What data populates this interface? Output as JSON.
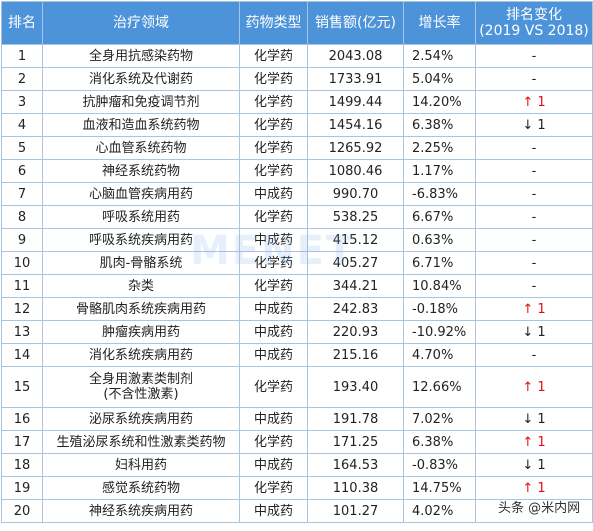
{
  "headers": {
    "rank": "排名",
    "area": "治疗领域",
    "type": "药物类型",
    "sales": "销售额(亿元)",
    "growth": "增长率",
    "change_line1": "排名变化",
    "change_line2": "(2019 VS 2018)"
  },
  "rows": [
    {
      "rank": "1",
      "area": "全身用抗感染药物",
      "type": "化学药",
      "sales": "2043.08",
      "growth": "2.54%",
      "change": "-"
    },
    {
      "rank": "2",
      "area": "消化系统及代谢药",
      "type": "化学药",
      "sales": "1733.91",
      "growth": "5.04%",
      "change": "-"
    },
    {
      "rank": "3",
      "area": "抗肿瘤和免疫调节剂",
      "type": "化学药",
      "sales": "1499.44",
      "growth": "14.20%",
      "change": "↑ 1"
    },
    {
      "rank": "4",
      "area": "血液和造血系统药物",
      "type": "化学药",
      "sales": "1454.16",
      "growth": "6.38%",
      "change": "↓ 1"
    },
    {
      "rank": "5",
      "area": "心血管系统药物",
      "type": "化学药",
      "sales": "1265.92",
      "growth": "2.25%",
      "change": "-"
    },
    {
      "rank": "6",
      "area": "神经系统药物",
      "type": "化学药",
      "sales": "1080.46",
      "growth": "1.17%",
      "change": "-"
    },
    {
      "rank": "7",
      "area": "心脑血管疾病用药",
      "type": "中成药",
      "sales": "990.70",
      "growth": "-6.83%",
      "change": "-"
    },
    {
      "rank": "8",
      "area": "呼吸系统用药",
      "type": "化学药",
      "sales": "538.25",
      "growth": "6.67%",
      "change": "-"
    },
    {
      "rank": "9",
      "area": "呼吸系统疾病用药",
      "type": "中成药",
      "sales": "415.12",
      "growth": "0.63%",
      "change": "-"
    },
    {
      "rank": "10",
      "area": "肌肉-骨骼系统",
      "type": "化学药",
      "sales": "405.27",
      "growth": "6.71%",
      "change": "-"
    },
    {
      "rank": "11",
      "area": "杂类",
      "type": "化学药",
      "sales": "344.21",
      "growth": "10.84%",
      "change": "-"
    },
    {
      "rank": "12",
      "area": "骨骼肌肉系统疾病用药",
      "type": "中成药",
      "sales": "242.83",
      "growth": "-0.18%",
      "change": "↑ 1"
    },
    {
      "rank": "13",
      "area": "肿瘤疾病用药",
      "type": "中成药",
      "sales": "220.93",
      "growth": "-10.92%",
      "change": "↓ 1"
    },
    {
      "rank": "14",
      "area": "消化系统疾病用药",
      "type": "中成药",
      "sales": "215.16",
      "growth": "4.70%",
      "change": "-"
    },
    {
      "rank": "15",
      "area": "全身用激素类制剂",
      "area2": "(不含性激素)",
      "type": "化学药",
      "sales": "193.40",
      "growth": "12.66%",
      "change": "↑ 1"
    },
    {
      "rank": "16",
      "area": "泌尿系统疾病用药",
      "type": "中成药",
      "sales": "191.78",
      "growth": "7.02%",
      "change": "↓ 1"
    },
    {
      "rank": "17",
      "area": "生殖泌尿系统和性激素类药物",
      "type": "化学药",
      "sales": "171.25",
      "growth": "6.38%",
      "change": "↑ 1"
    },
    {
      "rank": "18",
      "area": "妇科用药",
      "type": "中成药",
      "sales": "164.53",
      "growth": "-0.83%",
      "change": "↓ 1"
    },
    {
      "rank": "19",
      "area": "感觉系统药物",
      "type": "化学药",
      "sales": "110.38",
      "growth": "14.75%",
      "change": "↑ 1"
    },
    {
      "rank": "20",
      "area": "神经系统疾病用药",
      "type": "中成药",
      "sales": "101.27",
      "growth": "4.02%",
      "change": "-"
    }
  ],
  "watermark": "头条 @米内网",
  "colors": {
    "header_bg": "#4d93d9",
    "up_arrow": "#e01010",
    "border": "#a9c4e3"
  }
}
